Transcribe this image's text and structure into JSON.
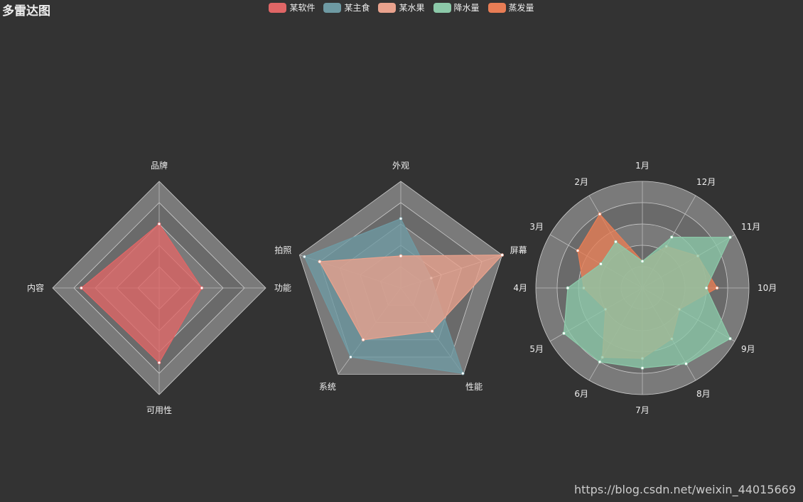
{
  "title": "多雷达图",
  "watermark": "https://blog.csdn.net/weixin_44015669",
  "legend": [
    {
      "name": "某软件",
      "color": "#e06666"
    },
    {
      "name": "某主食",
      "color": "#6e9aa3"
    },
    {
      "name": "某水果",
      "color": "#e9a28d"
    },
    {
      "name": "降水量",
      "color": "#8cc9a9"
    },
    {
      "name": "蒸发量",
      "color": "#e87d55"
    }
  ],
  "chart_data": [
    {
      "type": "radar",
      "shape": "polygon",
      "indicators": [
        {
          "name": "品牌",
          "max": 100
        },
        {
          "name": "内容",
          "max": 100
        },
        {
          "name": "可用性",
          "max": 100
        },
        {
          "name": "功能",
          "max": 100
        }
      ],
      "series": [
        {
          "name": "某软件",
          "color": "#e06666",
          "values": [
            60,
            73,
            70,
            40
          ]
        }
      ]
    },
    {
      "type": "radar",
      "shape": "polygon",
      "indicators": [
        {
          "name": "外观",
          "max": 100
        },
        {
          "name": "拍照",
          "max": 100
        },
        {
          "name": "系统",
          "max": 100
        },
        {
          "name": "性能",
          "max": 100
        },
        {
          "name": "屏幕",
          "max": 100
        }
      ],
      "series": [
        {
          "name": "某主食",
          "color": "#6e9aa3",
          "values": [
            65,
            95,
            80,
            99,
            30
          ]
        },
        {
          "name": "某水果",
          "color": "#e9a28d",
          "values": [
            30,
            80,
            60,
            50,
            100
          ]
        }
      ]
    },
    {
      "type": "radar",
      "shape": "circle",
      "indicators": [
        {
          "name": "1月",
          "max": 100
        },
        {
          "name": "2月",
          "max": 100
        },
        {
          "name": "3月",
          "max": 100
        },
        {
          "name": "4月",
          "max": 100
        },
        {
          "name": "5月",
          "max": 100
        },
        {
          "name": "6月",
          "max": 100
        },
        {
          "name": "7月",
          "max": 100
        },
        {
          "name": "8月",
          "max": 100
        },
        {
          "name": "9月",
          "max": 100
        },
        {
          "name": "10月",
          "max": 100
        },
        {
          "name": "11月",
          "max": 100
        },
        {
          "name": "12月",
          "max": 100
        }
      ],
      "series": [
        {
          "name": "蒸发量",
          "color": "#e87d55",
          "values": [
            25,
            80,
            70,
            55,
            40,
            75,
            66,
            55,
            40,
            70,
            60,
            45
          ]
        },
        {
          "name": "降水量",
          "color": "#8cc9a9",
          "values": [
            25,
            50,
            45,
            70,
            85,
            80,
            75,
            82,
            95,
            60,
            95,
            55
          ]
        }
      ]
    }
  ]
}
